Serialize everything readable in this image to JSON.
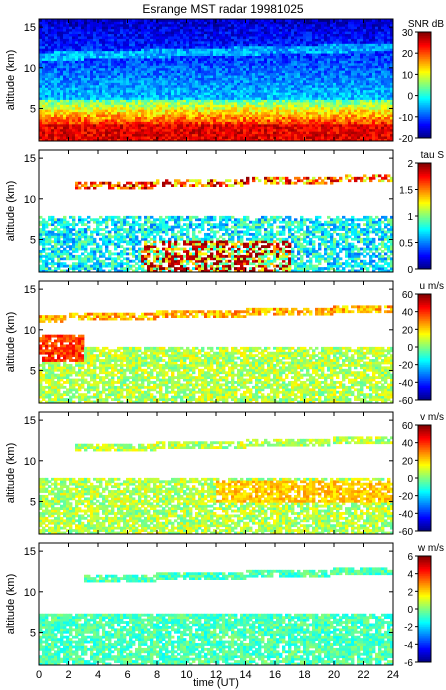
{
  "title": "Esrange MST radar 19981025",
  "xlabel": "time (UT)",
  "xticks": [
    0,
    2,
    4,
    6,
    8,
    10,
    12,
    14,
    16,
    18,
    20,
    22,
    24
  ],
  "chart_data": [
    {
      "type": "heatmap",
      "ylabel": "altitude (km)",
      "ylim": [
        1,
        16
      ],
      "yticks": [
        5,
        10,
        15
      ],
      "xlim": [
        0,
        24
      ],
      "colorbar": {
        "label": "SNR dB",
        "range": [
          -20,
          30
        ],
        "ticks": [
          -20,
          -10,
          0,
          10,
          20,
          30
        ]
      },
      "colormap": "jet"
    },
    {
      "type": "heatmap",
      "ylabel": "altitude (km)",
      "ylim": [
        1,
        16
      ],
      "yticks": [
        5,
        10,
        15
      ],
      "xlim": [
        0,
        24
      ],
      "colorbar": {
        "label": "tau S",
        "range": [
          0,
          2
        ],
        "ticks": [
          0,
          0.5,
          1,
          1.5,
          2
        ]
      },
      "colormap": "jet"
    },
    {
      "type": "heatmap",
      "ylabel": "altitude (km)",
      "ylim": [
        1,
        16
      ],
      "yticks": [
        5,
        10,
        15
      ],
      "xlim": [
        0,
        24
      ],
      "colorbar": {
        "label": "u m/s",
        "range": [
          -60,
          60
        ],
        "ticks": [
          -60,
          -40,
          -20,
          0,
          20,
          40,
          60
        ]
      },
      "colormap": "jet"
    },
    {
      "type": "heatmap",
      "ylabel": "altitude (km)",
      "ylim": [
        1,
        16
      ],
      "yticks": [
        5,
        10,
        15
      ],
      "xlim": [
        0,
        24
      ],
      "colorbar": {
        "label": "v m/s",
        "range": [
          -60,
          60
        ],
        "ticks": [
          -60,
          -40,
          -20,
          0,
          20,
          40,
          60
        ]
      },
      "colormap": "jet"
    },
    {
      "type": "heatmap",
      "ylabel": "altitude (km)",
      "ylim": [
        1,
        16
      ],
      "yticks": [
        5,
        10,
        15
      ],
      "xlim": [
        0,
        24
      ],
      "colorbar": {
        "label": "w m/s",
        "range": [
          -6,
          6
        ],
        "ticks": [
          -6,
          -4,
          -2,
          0,
          2,
          4,
          6
        ]
      },
      "colormap": "jet"
    }
  ]
}
